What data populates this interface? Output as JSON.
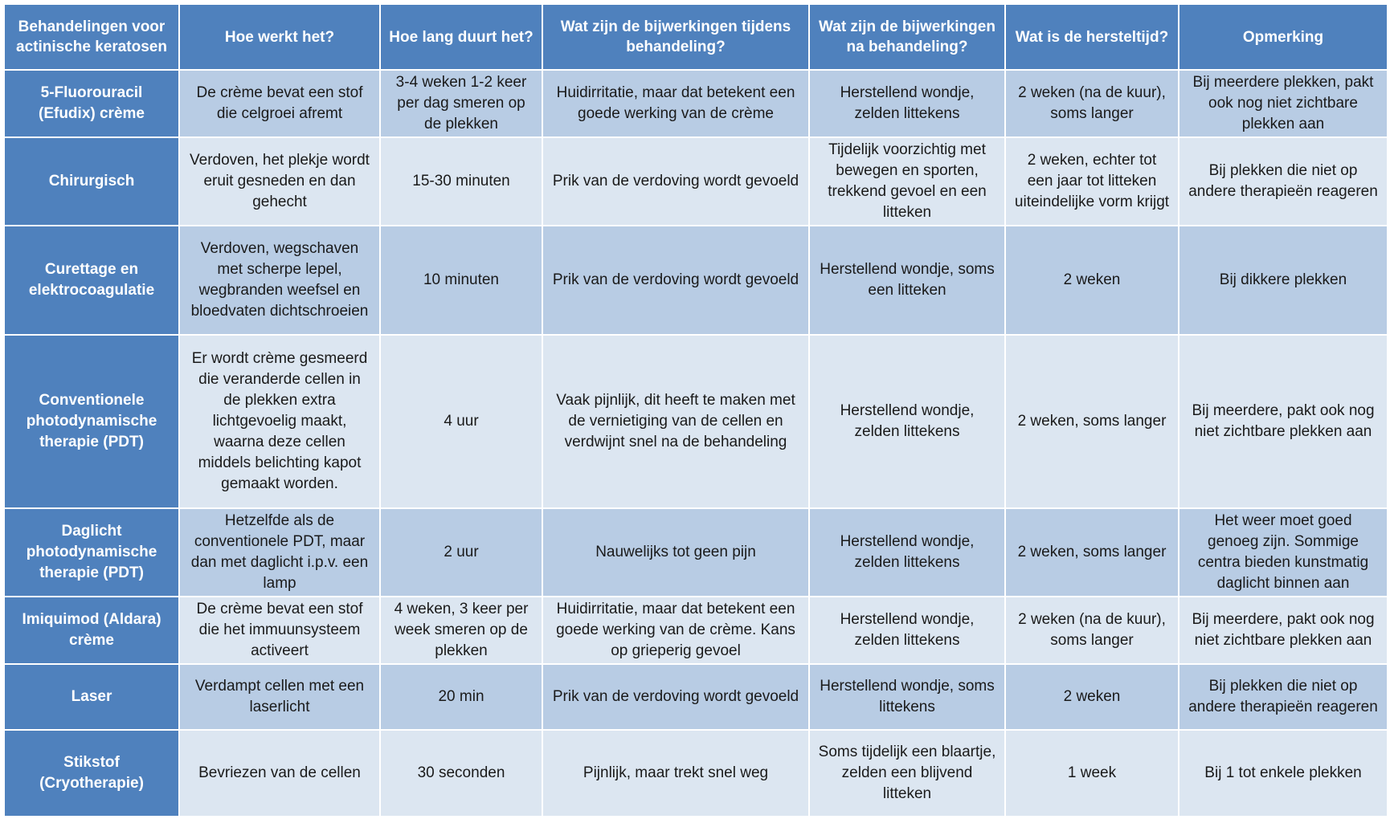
{
  "table": {
    "headers": [
      "Behandelingen voor actinische keratosen",
      "Hoe werkt het?",
      "Hoe lang duurt het?",
      "Wat zijn de bijwerkingen tijdens behandeling?",
      "Wat zijn de bijwerkingen na behandeling?",
      "Wat is de hersteltijd?",
      "Opmerking"
    ],
    "rows": [
      {
        "treatment": "5-Fluorouracil (Efudix) crème",
        "how": "De crème bevat een stof die celgroei afremt",
        "duration": "3-4 weken 1-2 keer per dag smeren op de plekken",
        "side_during": "Huidirritatie, maar dat betekent een goede werking van de crème",
        "side_after": "Herstellend wondje, zelden littekens",
        "recovery": "2 weken (na de kuur), soms langer",
        "remark": "Bij meerdere plekken, pakt ook nog niet zichtbare plekken aan"
      },
      {
        "treatment": "Chirurgisch",
        "how": "Verdoven, het plekje wordt eruit gesneden en dan gehecht",
        "duration": "15-30 minuten",
        "side_during": "Prik van de verdoving wordt gevoeld",
        "side_after": "Tijdelijk voorzichtig met bewegen en sporten, trekkend gevoel en een litteken",
        "recovery": "2 weken, echter tot een jaar tot litteken uiteindelijke vorm krijgt",
        "remark": "Bij plekken die niet op andere therapieën reageren"
      },
      {
        "treatment": "Curettage en elektrocoagulatie",
        "how": "Verdoven, wegschaven met scherpe lepel, wegbranden weefsel en bloedvaten dichtschroeien",
        "duration": "10 minuten",
        "side_during": "Prik van de verdoving wordt gevoeld",
        "side_after": "Herstellend wondje, soms een litteken",
        "recovery": "2 weken",
        "remark": "Bij dikkere plekken"
      },
      {
        "treatment": "Conventionele photodynamische therapie (PDT)",
        "how": "Er wordt crème gesmeerd die veranderde cellen in de plekken extra lichtgevoelig maakt, waarna deze cellen middels belichting kapot gemaakt worden.",
        "duration": "4 uur",
        "side_during": "Vaak pijnlijk, dit heeft te maken met de vernietiging van de cellen en verdwijnt snel na de behandeling",
        "side_after": "Herstellend wondje, zelden littekens",
        "recovery": "2 weken, soms langer",
        "remark": "Bij meerdere, pakt ook nog niet zichtbare plekken aan"
      },
      {
        "treatment": "Daglicht photodynamische therapie (PDT)",
        "how": "Hetzelfde als de conventionele PDT, maar dan met daglicht i.p.v. een lamp",
        "duration": "2 uur",
        "side_during": "Nauwelijks tot geen pijn",
        "side_after": "Herstellend wondje, zelden littekens",
        "recovery": "2 weken, soms langer",
        "remark": "Het weer moet goed genoeg zijn. Sommige centra bieden kunstmatig daglicht binnen aan"
      },
      {
        "treatment": "Imiquimod (Aldara) crème",
        "how": "De crème bevat een stof die het immuunsysteem activeert",
        "duration": "4 weken, 3 keer per week smeren op de plekken",
        "side_during": "Huidirritatie, maar dat betekent een goede werking van de crème. Kans op grieperig gevoel",
        "side_after": "Herstellend wondje, zelden littekens",
        "recovery": "2 weken (na de kuur), soms langer",
        "remark": "Bij meerdere, pakt ook nog niet zichtbare plekken aan"
      },
      {
        "treatment": "Laser",
        "how": "Verdampt cellen met een laserlicht",
        "duration": "20 min",
        "side_during": "Prik van de verdoving wordt gevoeld",
        "side_after": "Herstellend wondje, soms littekens",
        "recovery": "2 weken",
        "remark": "Bij plekken die niet op andere therapieën reageren"
      },
      {
        "treatment": "Stikstof (Cryotherapie)",
        "how": "Bevriezen van de cellen",
        "duration": "30 seconden",
        "side_during": "Pijnlijk, maar trekt snel weg",
        "side_after": "Soms tijdelijk een blaartje,\nzelden een blijvend litteken",
        "recovery": "1 week",
        "remark": "Bij 1 tot enkele plekken"
      }
    ]
  }
}
